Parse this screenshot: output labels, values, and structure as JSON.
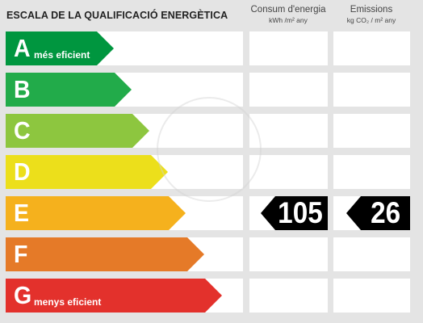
{
  "title": "ESCALA DE LA QUALIFICACIÓ ENERGÈTICA",
  "columns": {
    "consum": {
      "label": "Consum d'energia",
      "unit": "kWh /m² any"
    },
    "emissions": {
      "label": "Emissions",
      "unit": "kg CO₂ / m² any"
    }
  },
  "classes": [
    {
      "letter": "A",
      "desc": "més eficient",
      "color": "#00963f"
    },
    {
      "letter": "B",
      "desc": "",
      "color": "#22ab4a"
    },
    {
      "letter": "C",
      "desc": "",
      "color": "#8dc63f"
    },
    {
      "letter": "D",
      "desc": "",
      "color": "#ecdf1b"
    },
    {
      "letter": "E",
      "desc": "",
      "color": "#f5b11d"
    },
    {
      "letter": "F",
      "desc": "",
      "color": "#e57a28"
    },
    {
      "letter": "G",
      "desc": "menys eficient",
      "color": "#e3312c"
    }
  ],
  "rating": {
    "class": "E",
    "consum_value": "105",
    "emissions_value": "26"
  }
}
